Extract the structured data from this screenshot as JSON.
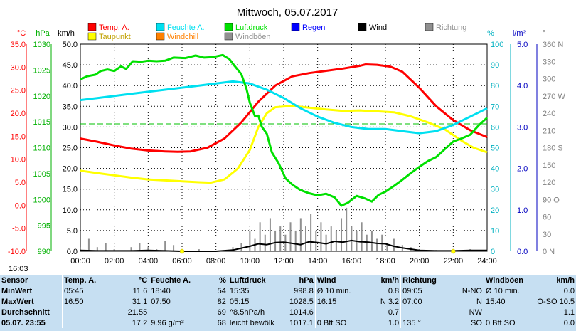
{
  "title": "Mittwoch, 05.07.2017",
  "legend": [
    {
      "label": "Temp. A.",
      "color": "#ff0000"
    },
    {
      "label": "Feuchte A.",
      "color": "#00e0f0"
    },
    {
      "label": "Luftdruck",
      "color": "#00e000"
    },
    {
      "label": "Regen",
      "color": "#0000ff"
    },
    {
      "label": "Wind",
      "color": "#000000"
    },
    {
      "label": "Richtung",
      "color": "#909090"
    },
    {
      "label": "Taupunkt",
      "color": "#ffff00"
    },
    {
      "label": "Windchill",
      "color": "#ff8000"
    },
    {
      "label": "Windböen",
      "color": "#909090"
    }
  ],
  "axis_units": {
    "temp": "°C",
    "press": "hPa",
    "wind": "km/h",
    "hum": "%",
    "rain": "l/m²",
    "dir": "°"
  },
  "current_time": "16:03",
  "chart_data": {
    "type": "line",
    "x_range_hours": [
      0,
      24
    ],
    "x_ticks": [
      "00:00",
      "02:00",
      "04:00",
      "06:00",
      "08:00",
      "10:00",
      "12:00",
      "14:00",
      "16:00",
      "18:00",
      "20:00",
      "22:00",
      "24:00"
    ],
    "axes": {
      "temp": {
        "label": "°C",
        "range": [
          -10,
          35
        ],
        "ticks": [
          "35.0",
          "30.0",
          "25.0",
          "20.0",
          "15.0",
          "10.0",
          "5.0",
          "0.0",
          "-5.0",
          "-10.0"
        ]
      },
      "press": {
        "label": "hPa",
        "range": [
          990,
          1030
        ],
        "ticks": [
          "1030",
          "1025",
          "1020",
          "1015",
          "1010",
          "1005",
          "1000",
          "995",
          "990"
        ]
      },
      "wind": {
        "label": "km/h",
        "range": [
          0,
          50
        ],
        "ticks": [
          "50.0",
          "45.0",
          "40.0",
          "35.0",
          "30.0",
          "25.0",
          "20.0",
          "15.0",
          "10.0",
          "5.0",
          "0.0"
        ]
      },
      "hum": {
        "label": "%",
        "range": [
          0,
          100
        ],
        "ticks": [
          "100",
          "90",
          "80",
          "70",
          "60",
          "50",
          "40",
          "30",
          "20",
          "10",
          "0"
        ]
      },
      "rain": {
        "label": "l/m²",
        "range": [
          0,
          5
        ],
        "ticks": [
          "5.0",
          "4.0",
          "3.0",
          "2.0",
          "1.0",
          "0.0"
        ]
      },
      "dir": {
        "label": "°",
        "range": [
          0,
          360
        ],
        "ticks": [
          "360 N",
          "330",
          "300",
          "270 W",
          "240",
          "210",
          "180 S",
          "150",
          "120",
          "90 O",
          "60",
          "30",
          "0 N"
        ]
      }
    },
    "series": [
      {
        "name": "Temp. A.",
        "axis": "temp",
        "color": "#ff0000",
        "width": 3,
        "points": [
          [
            0,
            14.5
          ],
          [
            1,
            13.8
          ],
          [
            2,
            13
          ],
          [
            3,
            12.3
          ],
          [
            4,
            11.9
          ],
          [
            5,
            11.7
          ],
          [
            5.75,
            11.6
          ],
          [
            6.5,
            11.7
          ],
          [
            7.5,
            12.5
          ],
          [
            8.5,
            14.5
          ],
          [
            9.5,
            18
          ],
          [
            10.5,
            22.5
          ],
          [
            11.5,
            26
          ],
          [
            12.5,
            28
          ],
          [
            13.5,
            28.7
          ],
          [
            14.5,
            29.2
          ],
          [
            15.5,
            29.7
          ],
          [
            16.5,
            30.3
          ],
          [
            16.83,
            30.6
          ],
          [
            17.5,
            30.5
          ],
          [
            18.3,
            30.1
          ],
          [
            19,
            29
          ],
          [
            20,
            25.5
          ],
          [
            21,
            21.5
          ],
          [
            22,
            18.5
          ],
          [
            23,
            16.3
          ],
          [
            24,
            14.8
          ]
        ]
      },
      {
        "name": "Taupunkt",
        "axis": "temp",
        "color": "#ffff00",
        "width": 3,
        "points": [
          [
            0,
            7.5
          ],
          [
            1,
            7
          ],
          [
            2,
            6.5
          ],
          [
            3,
            6
          ],
          [
            4,
            5.6
          ],
          [
            5,
            5.4
          ],
          [
            6,
            5.2
          ],
          [
            7,
            5.0
          ],
          [
            7.7,
            4.9
          ],
          [
            8.5,
            5.6
          ],
          [
            9.3,
            8
          ],
          [
            10,
            12
          ],
          [
            10.5,
            17
          ],
          [
            11,
            20
          ],
          [
            11.5,
            21.3
          ],
          [
            12.5,
            21.6
          ],
          [
            13.5,
            21.2
          ],
          [
            14.5,
            20.8
          ],
          [
            15.5,
            20.5
          ],
          [
            16.5,
            20.6
          ],
          [
            17.5,
            20.4
          ],
          [
            18.5,
            20.2
          ],
          [
            19.5,
            19.3
          ],
          [
            20.5,
            18
          ],
          [
            21.5,
            16.5
          ],
          [
            22.5,
            14
          ],
          [
            23.2,
            12.5
          ],
          [
            24,
            11.5
          ]
        ]
      },
      {
        "name": "Feuchte A.",
        "axis": "hum",
        "color": "#00e0f0",
        "width": 3,
        "points": [
          [
            0,
            73
          ],
          [
            1,
            74
          ],
          [
            2,
            75
          ],
          [
            3,
            76
          ],
          [
            4,
            77
          ],
          [
            5,
            78
          ],
          [
            6,
            79
          ],
          [
            7,
            80
          ],
          [
            8,
            81
          ],
          [
            9,
            82
          ],
          [
            10,
            81
          ],
          [
            11,
            78
          ],
          [
            12,
            74
          ],
          [
            13,
            69
          ],
          [
            14,
            65
          ],
          [
            15,
            62
          ],
          [
            16,
            60
          ],
          [
            17,
            59
          ],
          [
            18,
            59
          ],
          [
            19,
            58
          ],
          [
            20,
            57
          ],
          [
            21,
            58
          ],
          [
            22,
            61
          ],
          [
            23,
            65
          ],
          [
            24,
            69
          ]
        ]
      },
      {
        "name": "Luftdruck",
        "axis": "press",
        "color": "#00e000",
        "width": 3,
        "points": [
          [
            0,
            1023.2
          ],
          [
            0.4,
            1023.8
          ],
          [
            0.9,
            1024.1
          ],
          [
            1.2,
            1024.8
          ],
          [
            1.6,
            1025.1
          ],
          [
            2,
            1024.8
          ],
          [
            2.4,
            1025.7
          ],
          [
            2.7,
            1025.2
          ],
          [
            3.1,
            1026.7
          ],
          [
            3.6,
            1026.6
          ],
          [
            4,
            1026.8
          ],
          [
            4.5,
            1026.7
          ],
          [
            5,
            1026.8
          ],
          [
            5.5,
            1027.4
          ],
          [
            6.2,
            1027.3
          ],
          [
            6.8,
            1027.8
          ],
          [
            7.3,
            1027.4
          ],
          [
            7.83,
            1027.5
          ],
          [
            8.4,
            1027.9
          ],
          [
            8.8,
            1027.1
          ],
          [
            9.1,
            1025.8
          ],
          [
            9.5,
            1024.2
          ],
          [
            9.8,
            1021.4
          ],
          [
            10,
            1018.7
          ],
          [
            10.3,
            1016.1
          ],
          [
            10.5,
            1016.2
          ],
          [
            10.7,
            1014.1
          ],
          [
            11,
            1012.7
          ],
          [
            11.3,
            1009.1
          ],
          [
            11.7,
            1007
          ],
          [
            12.1,
            1004.1
          ],
          [
            12.5,
            1002.9
          ],
          [
            13,
            1001.8
          ],
          [
            13.5,
            1001.2
          ],
          [
            14,
            1000.8
          ],
          [
            14.5,
            1001.1
          ],
          [
            15,
            1000.4
          ],
          [
            15.4,
            998.8
          ],
          [
            15.8,
            999.4
          ],
          [
            16.3,
            1000.7
          ],
          [
            16.8,
            1000.2
          ],
          [
            17.2,
            999.6
          ],
          [
            17.6,
            1000.9
          ],
          [
            18,
            1001.5
          ],
          [
            18.5,
            1002.6
          ],
          [
            19,
            1003.8
          ],
          [
            19.5,
            1005.1
          ],
          [
            20,
            1006.3
          ],
          [
            20.5,
            1007.4
          ],
          [
            21,
            1008.2
          ],
          [
            21.5,
            1009.7
          ],
          [
            22,
            1011.2
          ],
          [
            22.5,
            1011.8
          ],
          [
            23,
            1012.5
          ],
          [
            23.5,
            1014.3
          ],
          [
            24,
            1015.8
          ]
        ]
      },
      {
        "name": "Wind",
        "axis": "wind",
        "color": "#000000",
        "width": 2,
        "points": [
          [
            0,
            0.2
          ],
          [
            1,
            0.1
          ],
          [
            2,
            0.1
          ],
          [
            3,
            0.1
          ],
          [
            4,
            0.2
          ],
          [
            5,
            0.1
          ],
          [
            6,
            0
          ],
          [
            7,
            0
          ],
          [
            8,
            0
          ],
          [
            9,
            0.3
          ],
          [
            10,
            1.2
          ],
          [
            10.5,
            1.8
          ],
          [
            11,
            1.6
          ],
          [
            11.5,
            2.1
          ],
          [
            12,
            2.2
          ],
          [
            12.5,
            1.9
          ],
          [
            13,
            1.6
          ],
          [
            13.5,
            2.3
          ],
          [
            14,
            2.1
          ],
          [
            14.5,
            1.8
          ],
          [
            15,
            2.4
          ],
          [
            15.5,
            2.2
          ],
          [
            16,
            2.6
          ],
          [
            16.5,
            2.3
          ],
          [
            17,
            2.2
          ],
          [
            17.5,
            1.9
          ],
          [
            18,
            1.8
          ],
          [
            18.5,
            1.2
          ],
          [
            19,
            0.8
          ],
          [
            20,
            0.2
          ],
          [
            21,
            0.1
          ],
          [
            22,
            0.1
          ],
          [
            23,
            0.2
          ],
          [
            24,
            0.2
          ]
        ]
      }
    ],
    "gusts": {
      "name": "Windböen",
      "axis": "wind",
      "color": "#909090",
      "points": [
        [
          0,
          1
        ],
        [
          0.5,
          3
        ],
        [
          1,
          1
        ],
        [
          1.5,
          2
        ],
        [
          2,
          0.5
        ],
        [
          3,
          1
        ],
        [
          3.5,
          2
        ],
        [
          4,
          1
        ],
        [
          4.5,
          0.5
        ],
        [
          5,
          2.5
        ],
        [
          5.5,
          1.5
        ],
        [
          6,
          0
        ],
        [
          7,
          0.5
        ],
        [
          8,
          0
        ],
        [
          9,
          1
        ],
        [
          9.5,
          2
        ],
        [
          10,
          5
        ],
        [
          10.3,
          3
        ],
        [
          10.6,
          7
        ],
        [
          10.9,
          4
        ],
        [
          11.2,
          8
        ],
        [
          11.5,
          5
        ],
        [
          11.8,
          6
        ],
        [
          12.1,
          4
        ],
        [
          12.4,
          7
        ],
        [
          12.7,
          5
        ],
        [
          13,
          8
        ],
        [
          13.3,
          6
        ],
        [
          13.6,
          9
        ],
        [
          13.9,
          5
        ],
        [
          14.2,
          7
        ],
        [
          14.5,
          4
        ],
        [
          14.8,
          6
        ],
        [
          15.1,
          5
        ],
        [
          15.4,
          8
        ],
        [
          15.7,
          10.5
        ],
        [
          16,
          6
        ],
        [
          16.3,
          5
        ],
        [
          16.6,
          7
        ],
        [
          16.9,
          4
        ],
        [
          17.2,
          5
        ],
        [
          17.5,
          3
        ],
        [
          17.8,
          4
        ],
        [
          18.1,
          2
        ],
        [
          18.5,
          3
        ],
        [
          19,
          1.5
        ],
        [
          19.5,
          1
        ],
        [
          20,
          0.5
        ],
        [
          21,
          0.3
        ],
        [
          22,
          0.3
        ],
        [
          23,
          0.5
        ],
        [
          24,
          0.4
        ]
      ]
    },
    "press_ref": 1014.6
  },
  "table": {
    "headers": [
      "Sensor",
      "Temp. A.",
      "°C",
      "Feuchte A.",
      "%",
      "Luftdruck",
      "hPa",
      "Wind",
      "km/h",
      "Richtung",
      "",
      "Windböen",
      "km/h"
    ],
    "rows": [
      [
        "MinWert",
        "05:45",
        "11.6",
        "18:40",
        "54",
        "15:35",
        "998.8",
        "Ø 10 min.",
        "0.8",
        "09:05",
        "N-NO",
        "Ø 10 min.",
        "0.0"
      ],
      [
        "MaxWert",
        "16:50",
        "31.1",
        "07:50",
        "82",
        "05:15",
        "1028.5",
        "16:15",
        "N 3.2",
        "07:00",
        "N",
        "15:40",
        "O-SO 10.5"
      ],
      [
        "Durchschnitt",
        "",
        "21.55",
        "",
        "69",
        "^8.5hPa/h",
        "1014.6",
        "",
        "0.7",
        "",
        "NW",
        "",
        "1.1"
      ],
      [
        "05.07. 23:55",
        "",
        "17.2",
        "9.96 g/m³",
        "68",
        "leicht bewölk",
        "1017.1",
        "0 Bft SO",
        "1.0",
        "135 °",
        "SO",
        "0 Bft SO",
        "0.0"
      ]
    ]
  }
}
